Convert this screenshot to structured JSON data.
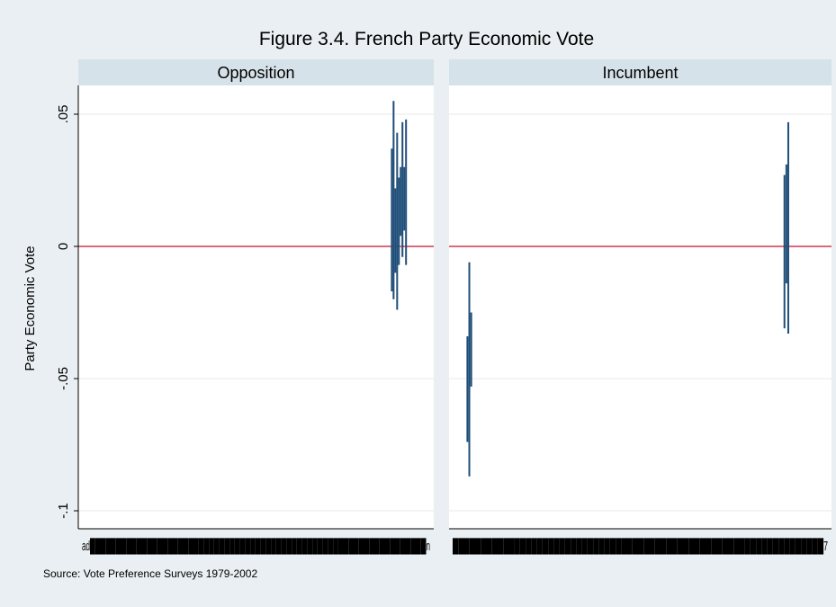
{
  "chart_data": {
    "type": "range",
    "title": "Figure 3.4. French Party Economic Vote",
    "ylabel": "Party Economic Vote",
    "ylim": [
      -0.1,
      0.06
    ],
    "yticks": [
      {
        "value": 0.05,
        "label": ".05"
      },
      {
        "value": 0,
        "label": "0"
      },
      {
        "value": -0.05,
        "label": "-.05"
      },
      {
        "value": -0.1,
        "label": "-.1"
      }
    ],
    "reference_line": {
      "value": 0,
      "color": "#c8102e"
    },
    "bar_color": "#1f4e79",
    "grid": true,
    "source": "Source: Vote Preference Surveys 1979-2002",
    "panels": [
      {
        "name": "Opposition",
        "x_tick_text": "ad█████████████████████████████████████████████████████████████████n",
        "intervals": [
          {
            "pos": 0.882,
            "low": -0.017,
            "high": 0.037
          },
          {
            "pos": 0.887,
            "low": -0.02,
            "high": 0.055
          },
          {
            "pos": 0.892,
            "low": -0.01,
            "high": 0.022
          },
          {
            "pos": 0.897,
            "low": -0.024,
            "high": 0.043
          },
          {
            "pos": 0.902,
            "low": -0.007,
            "high": 0.026
          },
          {
            "pos": 0.907,
            "low": 0.004,
            "high": 0.03
          },
          {
            "pos": 0.912,
            "low": -0.004,
            "high": 0.047
          },
          {
            "pos": 0.917,
            "low": 0.006,
            "high": 0.03
          },
          {
            "pos": 0.922,
            "low": -0.007,
            "high": 0.048
          }
        ]
      },
      {
        "name": "Incumbent",
        "x_tick_text": "██████████████████████████████████████████████████████████████████7",
        "intervals": [
          {
            "pos": 0.048,
            "low": -0.074,
            "high": -0.034
          },
          {
            "pos": 0.053,
            "low": -0.087,
            "high": -0.006
          },
          {
            "pos": 0.058,
            "low": -0.053,
            "high": -0.025
          },
          {
            "pos": 0.877,
            "low": -0.031,
            "high": 0.027
          },
          {
            "pos": 0.882,
            "low": -0.014,
            "high": 0.031
          },
          {
            "pos": 0.887,
            "low": -0.033,
            "high": 0.047
          }
        ]
      }
    ]
  }
}
